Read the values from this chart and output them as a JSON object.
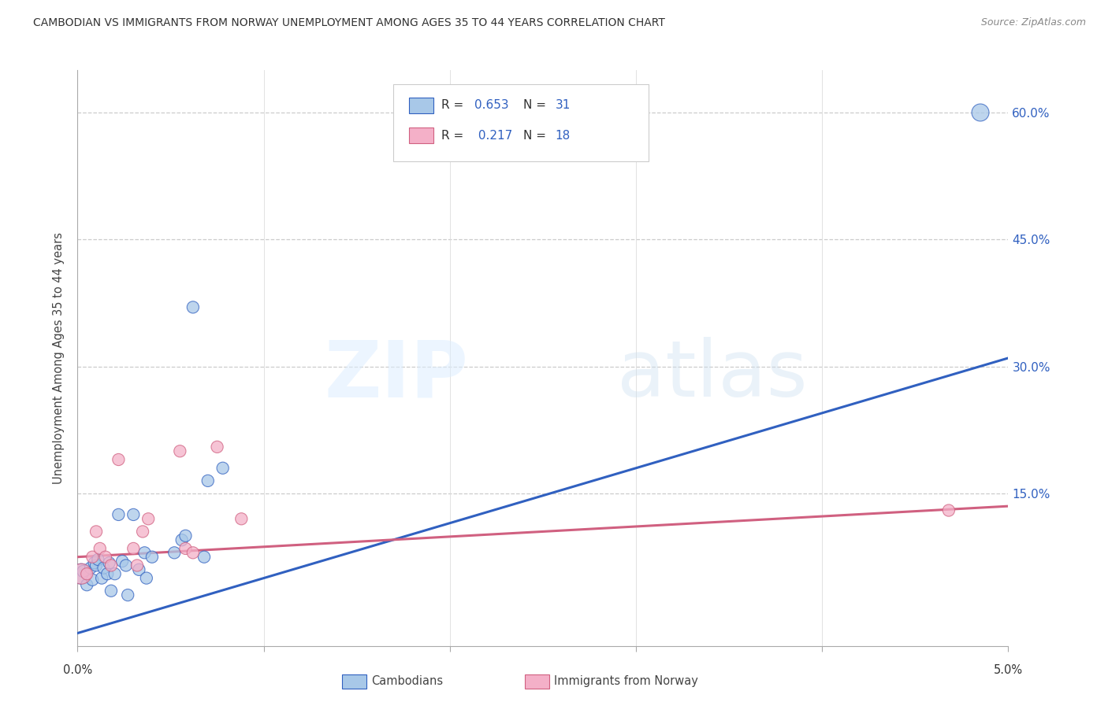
{
  "title": "CAMBODIAN VS IMMIGRANTS FROM NORWAY UNEMPLOYMENT AMONG AGES 35 TO 44 YEARS CORRELATION CHART",
  "source": "Source: ZipAtlas.com",
  "ylabel": "Unemployment Among Ages 35 to 44 years",
  "xmin": 0.0,
  "xmax": 5.0,
  "ymin": -3.0,
  "ymax": 65.0,
  "yticks": [
    0,
    15,
    30,
    45,
    60
  ],
  "ytick_labels": [
    "",
    "15.0%",
    "30.0%",
    "45.0%",
    "60.0%"
  ],
  "cambodian_color": "#a8c8e8",
  "norway_color": "#f4b0c8",
  "line_blue": "#3060c0",
  "line_pink": "#d06080",
  "cambodian_x": [
    0.02,
    0.03,
    0.05,
    0.07,
    0.08,
    0.09,
    0.1,
    0.11,
    0.13,
    0.14,
    0.16,
    0.17,
    0.18,
    0.2,
    0.22,
    0.24,
    0.26,
    0.27,
    0.3,
    0.33,
    0.36,
    0.37,
    0.4,
    0.52,
    0.56,
    0.58,
    0.62,
    0.68,
    0.7,
    0.78,
    4.85
  ],
  "cambodian_y": [
    5.5,
    5.8,
    4.2,
    6.2,
    4.8,
    6.8,
    6.5,
    7.2,
    5.0,
    6.2,
    5.5,
    6.8,
    3.5,
    5.5,
    12.5,
    7.0,
    6.5,
    3.0,
    12.5,
    6.0,
    8.0,
    5.0,
    7.5,
    8.0,
    9.5,
    10.0,
    37.0,
    7.5,
    16.5,
    18.0,
    60.0
  ],
  "norway_x": [
    0.02,
    0.05,
    0.08,
    0.1,
    0.12,
    0.15,
    0.18,
    0.22,
    0.3,
    0.32,
    0.35,
    0.38,
    0.55,
    0.58,
    0.62,
    0.75,
    0.88,
    4.68
  ],
  "norway_y": [
    5.5,
    5.5,
    7.5,
    10.5,
    8.5,
    7.5,
    6.5,
    19.0,
    8.5,
    6.5,
    10.5,
    12.0,
    20.0,
    8.5,
    8.0,
    20.5,
    12.0,
    13.0
  ],
  "blue_line_x0": 0.0,
  "blue_line_y0": -1.5,
  "blue_line_x1": 5.0,
  "blue_line_y1": 31.0,
  "pink_line_x0": 0.0,
  "pink_line_y0": 7.5,
  "pink_line_x1": 5.0,
  "pink_line_y1": 13.5,
  "cambodian_sizes": [
    350,
    120,
    120,
    120,
    120,
    120,
    120,
    120,
    120,
    120,
    120,
    120,
    120,
    120,
    120,
    120,
    120,
    120,
    120,
    120,
    120,
    120,
    120,
    120,
    120,
    120,
    120,
    120,
    120,
    120,
    250
  ],
  "norway_sizes": [
    350,
    120,
    120,
    120,
    120,
    120,
    120,
    120,
    120,
    120,
    120,
    120,
    120,
    120,
    120,
    120,
    120,
    120
  ]
}
